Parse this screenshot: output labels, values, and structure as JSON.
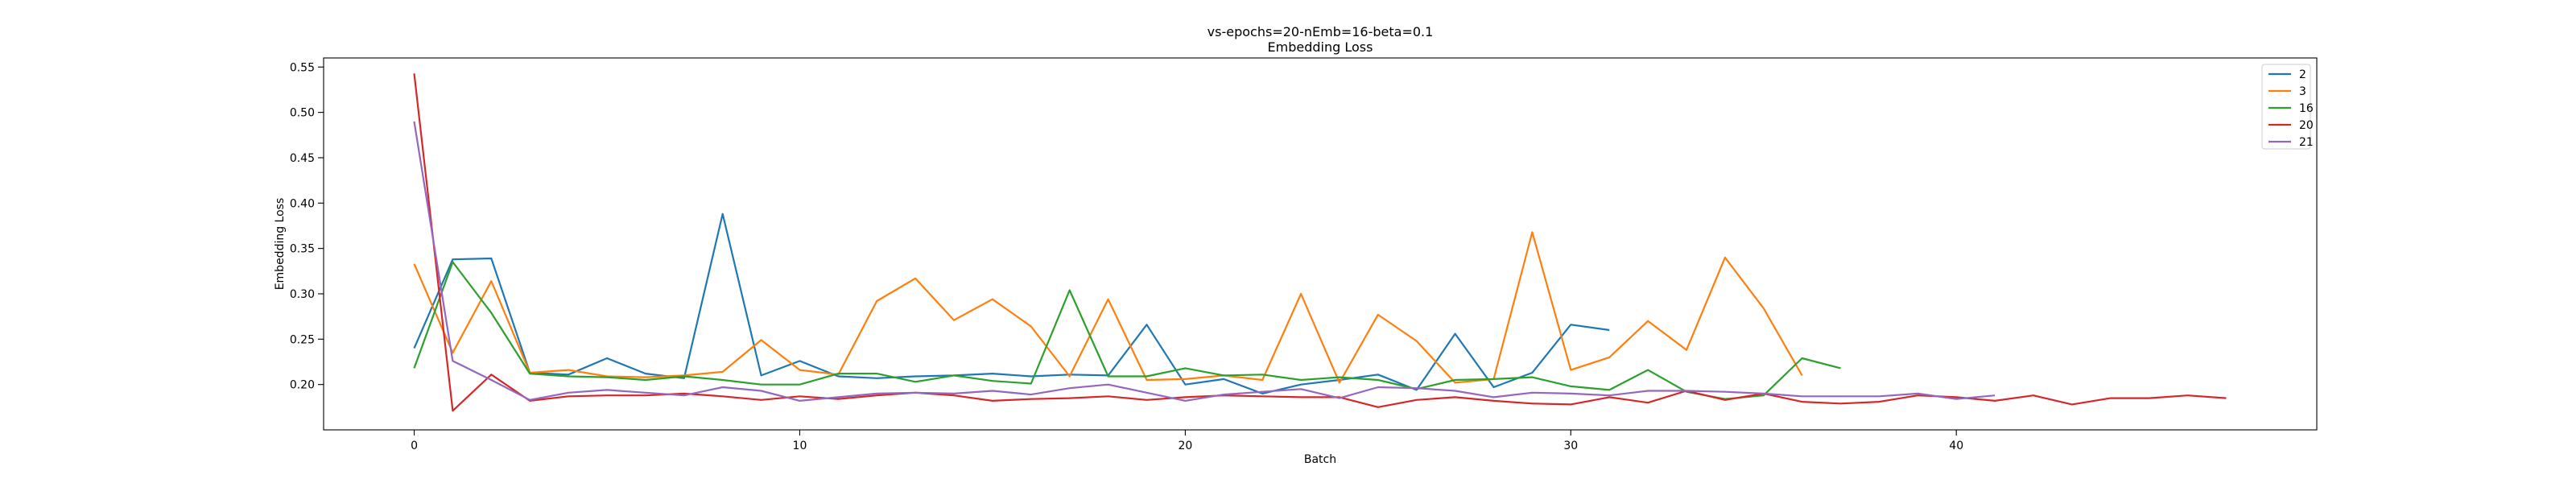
{
  "chart_data": {
    "type": "line",
    "title": "vs-epochs=20-nEmb=16-beta=0.1",
    "subtitle": "Embedding Loss",
    "xlabel": "Batch",
    "ylabel": "Embedding Loss",
    "xlim": [
      -2.35,
      49.35
    ],
    "ylim": [
      0.15,
      0.56
    ],
    "xticks": [
      0,
      10,
      20,
      30,
      40
    ],
    "yticks": [
      0.2,
      0.25,
      0.3,
      0.35,
      0.4,
      0.45,
      0.5,
      0.55
    ],
    "ytick_labels": [
      "0.20",
      "0.25",
      "0.30",
      "0.35",
      "0.40",
      "0.45",
      "0.50",
      "0.55"
    ],
    "grid": false,
    "legend_position": "top-right",
    "series": [
      {
        "name": "2",
        "color": "#1f77b4",
        "x": [
          0,
          1,
          2,
          3,
          4,
          5,
          6,
          7,
          8,
          9,
          10,
          11,
          12,
          13,
          14,
          15,
          16,
          17,
          18,
          19,
          20,
          21,
          22,
          23,
          24,
          25,
          26,
          27,
          28,
          29,
          30,
          31
        ],
        "values": [
          0.24,
          0.338,
          0.339,
          0.213,
          0.211,
          0.229,
          0.212,
          0.207,
          0.388,
          0.21,
          0.226,
          0.209,
          0.207,
          0.209,
          0.21,
          0.212,
          0.209,
          0.211,
          0.21,
          0.266,
          0.2,
          0.206,
          0.19,
          0.2,
          0.205,
          0.211,
          0.194,
          0.256,
          0.197,
          0.213,
          0.266,
          0.26
        ]
      },
      {
        "name": "3",
        "color": "#ff7f0e",
        "x": [
          0,
          1,
          2,
          3,
          4,
          5,
          6,
          7,
          8,
          9,
          10,
          11,
          12,
          13,
          14,
          15,
          16,
          17,
          18,
          19,
          20,
          21,
          22,
          23,
          24,
          25,
          26,
          27,
          28,
          29,
          30,
          31,
          32,
          33,
          34,
          35,
          36
        ],
        "values": [
          0.333,
          0.235,
          0.314,
          0.213,
          0.216,
          0.209,
          0.208,
          0.21,
          0.214,
          0.249,
          0.216,
          0.211,
          0.292,
          0.317,
          0.271,
          0.294,
          0.264,
          0.209,
          0.294,
          0.205,
          0.206,
          0.21,
          0.205,
          0.3,
          0.202,
          0.277,
          0.248,
          0.202,
          0.206,
          0.368,
          0.216,
          0.23,
          0.27,
          0.238,
          0.34,
          0.284,
          0.21
        ]
      },
      {
        "name": "16",
        "color": "#2ca02c",
        "x": [
          0,
          1,
          2,
          3,
          4,
          5,
          6,
          7,
          8,
          9,
          10,
          11,
          12,
          13,
          14,
          15,
          16,
          17,
          18,
          19,
          20,
          21,
          22,
          23,
          24,
          25,
          26,
          27,
          28,
          29,
          30,
          31,
          32,
          33,
          34,
          35,
          36,
          37
        ],
        "values": [
          0.218,
          0.335,
          0.279,
          0.212,
          0.209,
          0.208,
          0.205,
          0.209,
          0.205,
          0.2,
          0.2,
          0.212,
          0.212,
          0.203,
          0.21,
          0.204,
          0.201,
          0.304,
          0.209,
          0.209,
          0.218,
          0.21,
          0.211,
          0.205,
          0.208,
          0.205,
          0.195,
          0.205,
          0.206,
          0.208,
          0.198,
          0.194,
          0.216,
          0.192,
          0.184,
          0.188,
          0.229,
          0.218
        ]
      },
      {
        "name": "20",
        "color": "#d62728",
        "x": [
          0,
          1,
          2,
          3,
          4,
          5,
          6,
          7,
          8,
          9,
          10,
          11,
          12,
          13,
          14,
          15,
          16,
          17,
          18,
          19,
          20,
          21,
          22,
          23,
          24,
          25,
          26,
          27,
          28,
          29,
          30,
          31,
          32,
          33,
          34,
          35,
          36,
          37,
          38,
          39,
          40,
          41,
          42,
          43,
          44,
          45,
          46,
          47
        ],
        "values": [
          0.543,
          0.171,
          0.211,
          0.182,
          0.187,
          0.188,
          0.188,
          0.19,
          0.187,
          0.183,
          0.187,
          0.184,
          0.188,
          0.191,
          0.188,
          0.182,
          0.184,
          0.185,
          0.187,
          0.183,
          0.186,
          0.188,
          0.187,
          0.186,
          0.186,
          0.175,
          0.183,
          0.186,
          0.182,
          0.179,
          0.178,
          0.186,
          0.18,
          0.193,
          0.183,
          0.19,
          0.181,
          0.179,
          0.181,
          0.188,
          0.186,
          0.182,
          0.188,
          0.178,
          0.185,
          0.185,
          0.188,
          0.185
        ]
      },
      {
        "name": "21",
        "color": "#9467bd",
        "x": [
          0,
          1,
          2,
          3,
          4,
          5,
          6,
          7,
          8,
          9,
          10,
          11,
          12,
          13,
          14,
          15,
          16,
          17,
          18,
          19,
          20,
          21,
          22,
          23,
          24,
          25,
          26,
          27,
          28,
          29,
          30,
          31,
          32,
          33,
          34,
          35,
          36,
          37,
          38,
          39,
          40,
          41
        ],
        "values": [
          0.49,
          0.226,
          0.205,
          0.183,
          0.191,
          0.194,
          0.191,
          0.188,
          0.197,
          0.193,
          0.182,
          0.186,
          0.19,
          0.191,
          0.19,
          0.193,
          0.189,
          0.196,
          0.2,
          0.191,
          0.182,
          0.189,
          0.192,
          0.195,
          0.185,
          0.197,
          0.196,
          0.193,
          0.186,
          0.191,
          0.19,
          0.188,
          0.193,
          0.193,
          0.192,
          0.19,
          0.187,
          0.187,
          0.187,
          0.19,
          0.184,
          0.188
        ]
      }
    ]
  }
}
